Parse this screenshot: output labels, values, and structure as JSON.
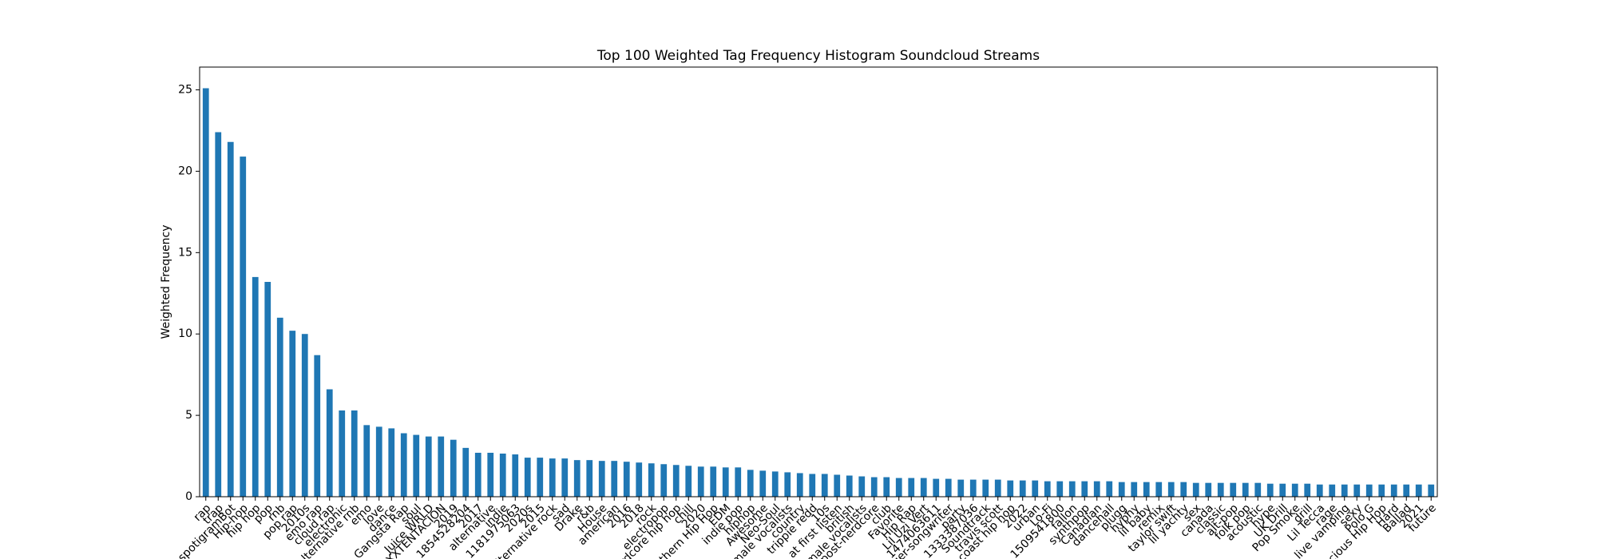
{
  "chart_data": {
    "type": "bar",
    "title": "Top 100 Weighted Tag Frequency Histogram Soundcloud Streams",
    "y_label": "Weighted Frequency",
    "color": "#1f77b4",
    "ylim": [
      0,
      26.4
    ],
    "yticks": [
      0,
      5,
      10,
      15,
      20,
      25
    ],
    "grid": false,
    "categories": [
      "rap",
      "trap",
      "spotigramBot",
      "Hip-hop",
      "hip hop",
      "pop",
      "rnb",
      "pop rap",
      "2010s",
      "emo rap",
      "cloud rap",
      "electronic",
      "alternative rnb",
      "emo",
      "love",
      "dance",
      "Gangsta Rap",
      "soul",
      "Juice WRLD",
      "XXXTENTACION",
      "2019",
      "1854528204",
      "2017",
      "alternative",
      "indie",
      "1181975063",
      "2020s",
      "2015",
      "alternative rock",
      "sad",
      "Drake",
      "r&b",
      "House",
      "american",
      "2016",
      "2018",
      "rock",
      "electropop",
      "hardcore hip hop",
      "chill",
      "2020",
      "Southern Hip Hop",
      "EDM",
      "indie pop",
      "hiphop",
      "Awesome",
      "Neo-Soul",
      "male vocalists",
      "country",
      "trippie redd",
      "10s",
      "at first listen",
      "british",
      "female vocalists",
      "post-nerdcore",
      "club",
      "Favorite",
      "Hip Rap",
      "Lil Uzi Vert",
      "1474063611",
      "singer-songwriter",
      "party",
      "1333387036",
      "Soundtrack",
      "travis scott",
      "west coast hip hop",
      "2022",
      "urban",
      "Lo-Fi",
      "1509541800",
      "fallon",
      "synthpop",
      "Canadian",
      "dancehall",
      "plugg",
      "hyphy",
      "lil baby",
      "remix",
      "taylor swift",
      "lil yachty",
      "sex",
      "canada",
      "classic",
      "alt-pop",
      "folk pop",
      "acoustic",
      "hype",
      "UK Drill",
      "Pop Smoke",
      "drill",
      "Lil Tecca",
      "rage",
      "live vamping",
      "sexy",
      "Polo G",
      "Conscious Hip Hop",
      "Hard",
      "Ballad",
      "2021",
      "future"
    ],
    "values": [
      25.1,
      22.4,
      21.8,
      20.9,
      13.5,
      13.2,
      11.0,
      10.2,
      10.0,
      8.7,
      6.6,
      5.3,
      5.3,
      4.4,
      4.3,
      4.2,
      3.9,
      3.8,
      3.7,
      3.7,
      3.5,
      3.0,
      2.7,
      2.7,
      2.65,
      2.6,
      2.4,
      2.4,
      2.35,
      2.35,
      2.25,
      2.25,
      2.2,
      2.2,
      2.15,
      2.1,
      2.05,
      2.0,
      1.95,
      1.9,
      1.85,
      1.85,
      1.8,
      1.8,
      1.65,
      1.6,
      1.55,
      1.5,
      1.45,
      1.4,
      1.4,
      1.35,
      1.3,
      1.25,
      1.2,
      1.2,
      1.15,
      1.15,
      1.15,
      1.1,
      1.1,
      1.05,
      1.05,
      1.05,
      1.05,
      1.0,
      1.0,
      1.0,
      0.95,
      0.95,
      0.95,
      0.95,
      0.95,
      0.95,
      0.9,
      0.9,
      0.9,
      0.9,
      0.9,
      0.9,
      0.85,
      0.85,
      0.85,
      0.85,
      0.85,
      0.85,
      0.8,
      0.8,
      0.8,
      0.8,
      0.75,
      0.75,
      0.75,
      0.75,
      0.75,
      0.75,
      0.75,
      0.75,
      0.75,
      0.75
    ]
  }
}
